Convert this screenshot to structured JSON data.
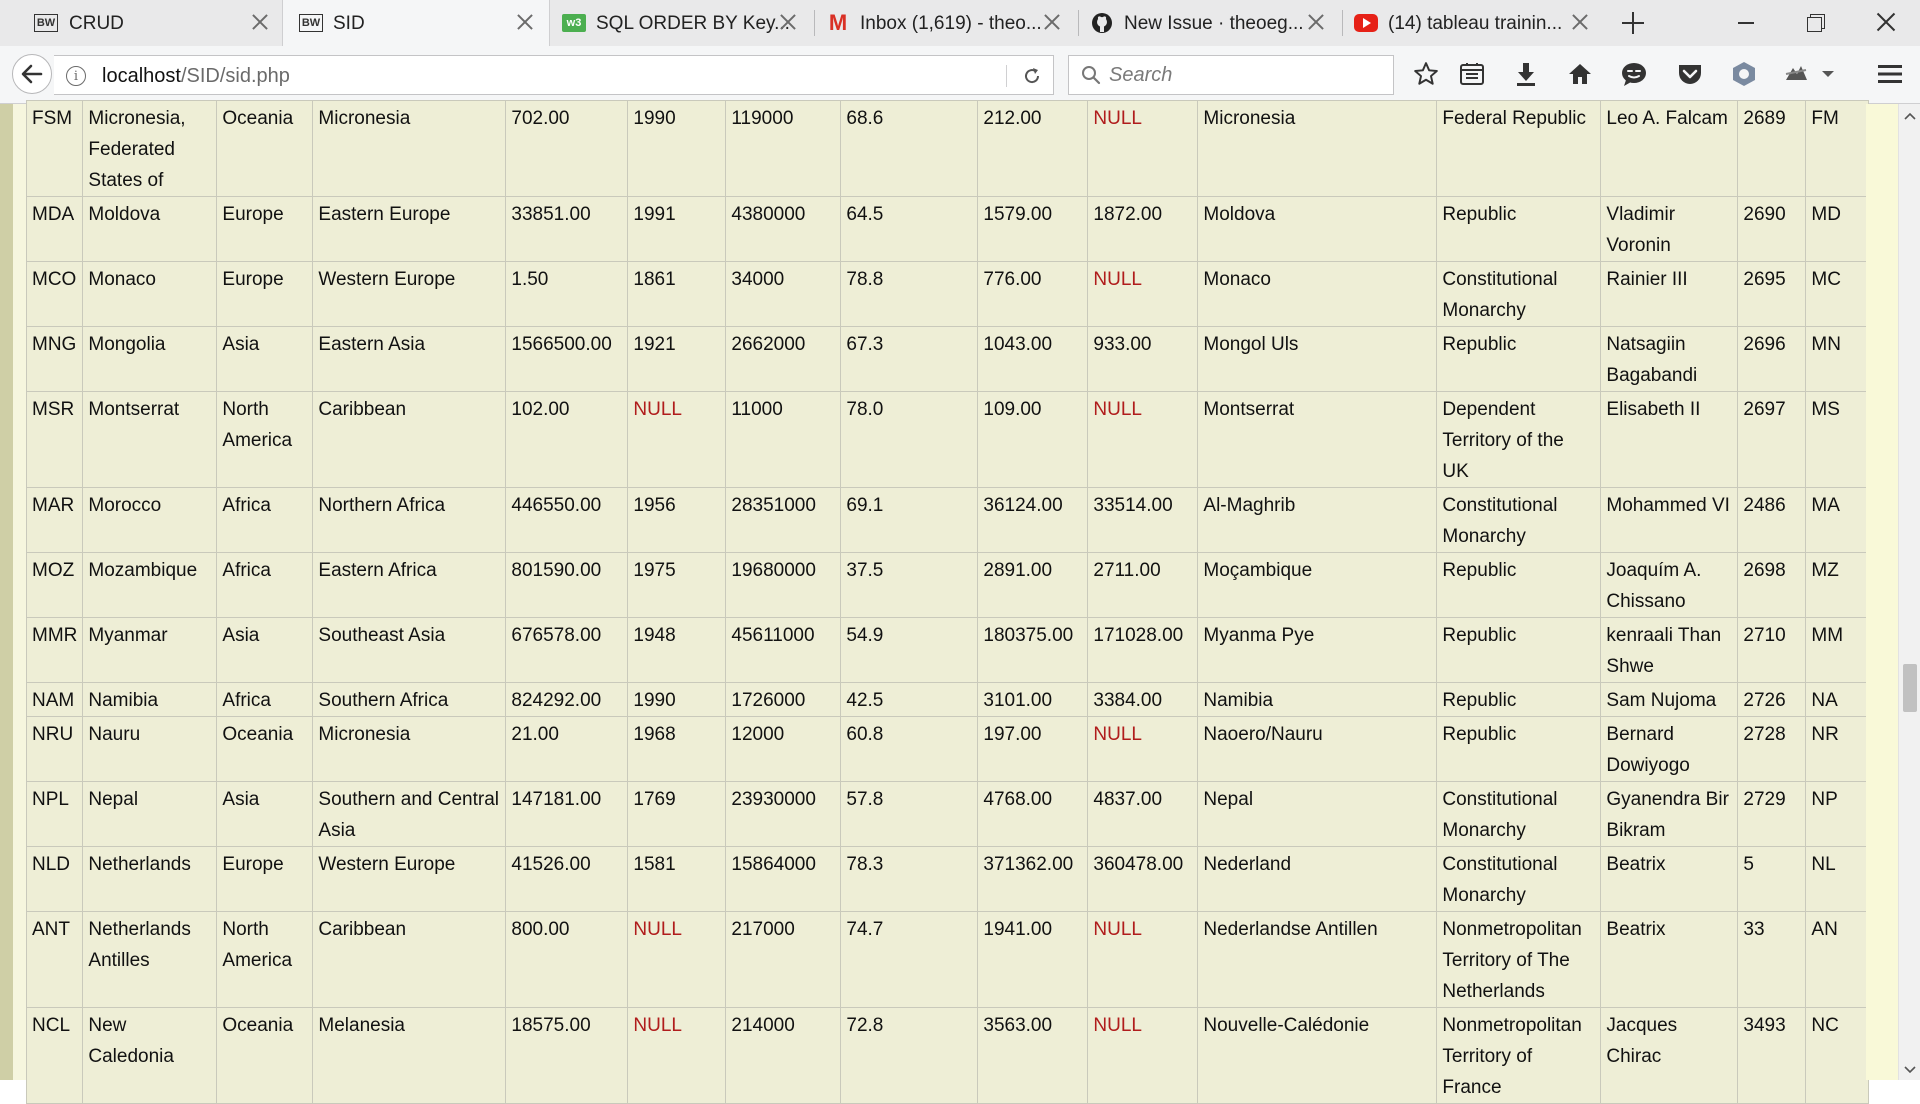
{
  "browser": {
    "tabs": [
      {
        "title": "CRUD",
        "icon": "bw-favicon-icon",
        "active": false
      },
      {
        "title": "SID",
        "icon": "bw-favicon-icon",
        "active": true
      },
      {
        "title": "SQL ORDER BY Key...",
        "icon": "w3schools-icon",
        "active": false
      },
      {
        "title": "Inbox (1,619) - theo...",
        "icon": "gmail-icon",
        "active": false
      },
      {
        "title": "New Issue · theoeg...",
        "icon": "github-icon",
        "active": false
      },
      {
        "title": "(14) tableau trainin...",
        "icon": "youtube-icon",
        "active": false
      }
    ],
    "url_host": "localhost",
    "url_path": "/SID/sid.php",
    "search_placeholder": "Search",
    "colors": {
      "null_text": "#b01c1c",
      "page_background": "#f6f6de",
      "table_background": "#eeeed6"
    }
  },
  "table": {
    "rows": [
      [
        "FSM",
        "Micronesia, Federated States of",
        "Oceania",
        "Micronesia",
        "702.00",
        "1990",
        "119000",
        "68.6",
        "212.00",
        "NULL",
        "Micronesia",
        "Federal Republic",
        "Leo A. Falcam",
        "2689",
        "FM"
      ],
      [
        "MDA",
        "Moldova",
        "Europe",
        "Eastern Europe",
        "33851.00",
        "1991",
        "4380000",
        "64.5",
        "1579.00",
        "1872.00",
        "Moldova",
        "Republic",
        "Vladimir Voronin",
        "2690",
        "MD"
      ],
      [
        "MCO",
        "Monaco",
        "Europe",
        "Western Europe",
        "1.50",
        "1861",
        "34000",
        "78.8",
        "776.00",
        "NULL",
        "Monaco",
        "Constitutional Monarchy",
        "Rainier III",
        "2695",
        "MC"
      ],
      [
        "MNG",
        "Mongolia",
        "Asia",
        "Eastern Asia",
        "1566500.00",
        "1921",
        "2662000",
        "67.3",
        "1043.00",
        "933.00",
        "Mongol Uls",
        "Republic",
        "Natsagiin Bagabandi",
        "2696",
        "MN"
      ],
      [
        "MSR",
        "Montserrat",
        "North America",
        "Caribbean",
        "102.00",
        "NULL",
        "11000",
        "78.0",
        "109.00",
        "NULL",
        "Montserrat",
        "Dependent Territory of the UK",
        "Elisabeth II",
        "2697",
        "MS"
      ],
      [
        "MAR",
        "Morocco",
        "Africa",
        "Northern Africa",
        "446550.00",
        "1956",
        "28351000",
        "69.1",
        "36124.00",
        "33514.00",
        "Al-Maghrib",
        "Constitutional Monarchy",
        "Mohammed VI",
        "2486",
        "MA"
      ],
      [
        "MOZ",
        "Mozambique",
        "Africa",
        "Eastern Africa",
        "801590.00",
        "1975",
        "19680000",
        "37.5",
        "2891.00",
        "2711.00",
        "Moçambique",
        "Republic",
        "Joaquím A. Chissano",
        "2698",
        "MZ"
      ],
      [
        "MMR",
        "Myanmar",
        "Asia",
        "Southeast Asia",
        "676578.00",
        "1948",
        "45611000",
        "54.9",
        "180375.00",
        "171028.00",
        "Myanma Pye",
        "Republic",
        "kenraali Than Shwe",
        "2710",
        "MM"
      ],
      [
        "NAM",
        "Namibia",
        "Africa",
        "Southern Africa",
        "824292.00",
        "1990",
        "1726000",
        "42.5",
        "3101.00",
        "3384.00",
        "Namibia",
        "Republic",
        "Sam Nujoma",
        "2726",
        "NA"
      ],
      [
        "NRU",
        "Nauru",
        "Oceania",
        "Micronesia",
        "21.00",
        "1968",
        "12000",
        "60.8",
        "197.00",
        "NULL",
        "Naoero/Nauru",
        "Republic",
        "Bernard Dowiyogo",
        "2728",
        "NR"
      ],
      [
        "NPL",
        "Nepal",
        "Asia",
        "Southern and Central Asia",
        "147181.00",
        "1769",
        "23930000",
        "57.8",
        "4768.00",
        "4837.00",
        "Nepal",
        "Constitutional Monarchy",
        "Gyanendra Bir Bikram",
        "2729",
        "NP"
      ],
      [
        "NLD",
        "Netherlands",
        "Europe",
        "Western Europe",
        "41526.00",
        "1581",
        "15864000",
        "78.3",
        "371362.00",
        "360478.00",
        "Nederland",
        "Constitutional Monarchy",
        "Beatrix",
        "5",
        "NL"
      ],
      [
        "ANT",
        "Netherlands Antilles",
        "North America",
        "Caribbean",
        "800.00",
        "NULL",
        "217000",
        "74.7",
        "1941.00",
        "NULL",
        "Nederlandse Antillen",
        "Nonmetropolitan Territory of The Netherlands",
        "Beatrix",
        "33",
        "AN"
      ],
      [
        "NCL",
        "New Caledonia",
        "Oceania",
        "Melanesia",
        "18575.00",
        "NULL",
        "214000",
        "72.8",
        "3563.00",
        "NULL",
        "Nouvelle-Calédonie",
        "Nonmetropolitan Territory of France",
        "Jacques Chirac",
        "3493",
        "NC"
      ]
    ]
  }
}
